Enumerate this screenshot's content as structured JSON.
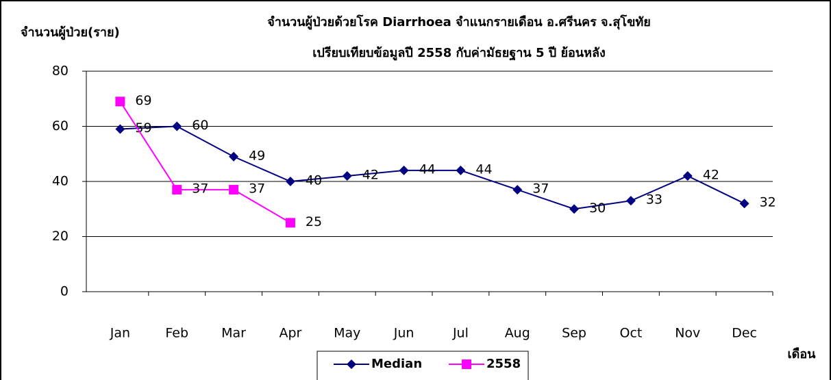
{
  "chart_data": {
    "type": "line",
    "title": [
      "จำนวนผู้ป่วยด้วยโรค  Diarrhoea  จำแนกรายเดือน     อ.ศรีนคร จ.สุโขทัย",
      "เปรียบเทียบข้อมูลปี  2558  กับค่ามัธยฐาน 5 ปี ย้อนหลัง"
    ],
    "y_label": "จำนวนผู้ป่วย(ราย)",
    "x_label": "เดือน",
    "categories": [
      "Jan",
      "Feb",
      "Mar",
      "Apr",
      "May",
      "Jun",
      "Jul",
      "Aug",
      "Sep",
      "Oct",
      "Nov",
      "Dec"
    ],
    "series": [
      {
        "name": "Median",
        "color": "#000080",
        "marker": "diamond",
        "values": [
          59,
          60,
          49,
          40,
          42,
          44,
          44,
          37,
          30,
          33,
          42,
          32
        ]
      },
      {
        "name": "2558",
        "color": "#ff00ff",
        "marker": "square",
        "values": [
          69,
          37,
          37,
          25,
          null,
          null,
          null,
          null,
          null,
          null,
          null,
          null
        ]
      }
    ],
    "ylim": [
      0,
      80
    ],
    "yticks": [
      0,
      20,
      40,
      60,
      80
    ],
    "grid": true,
    "legend": "bottom"
  }
}
